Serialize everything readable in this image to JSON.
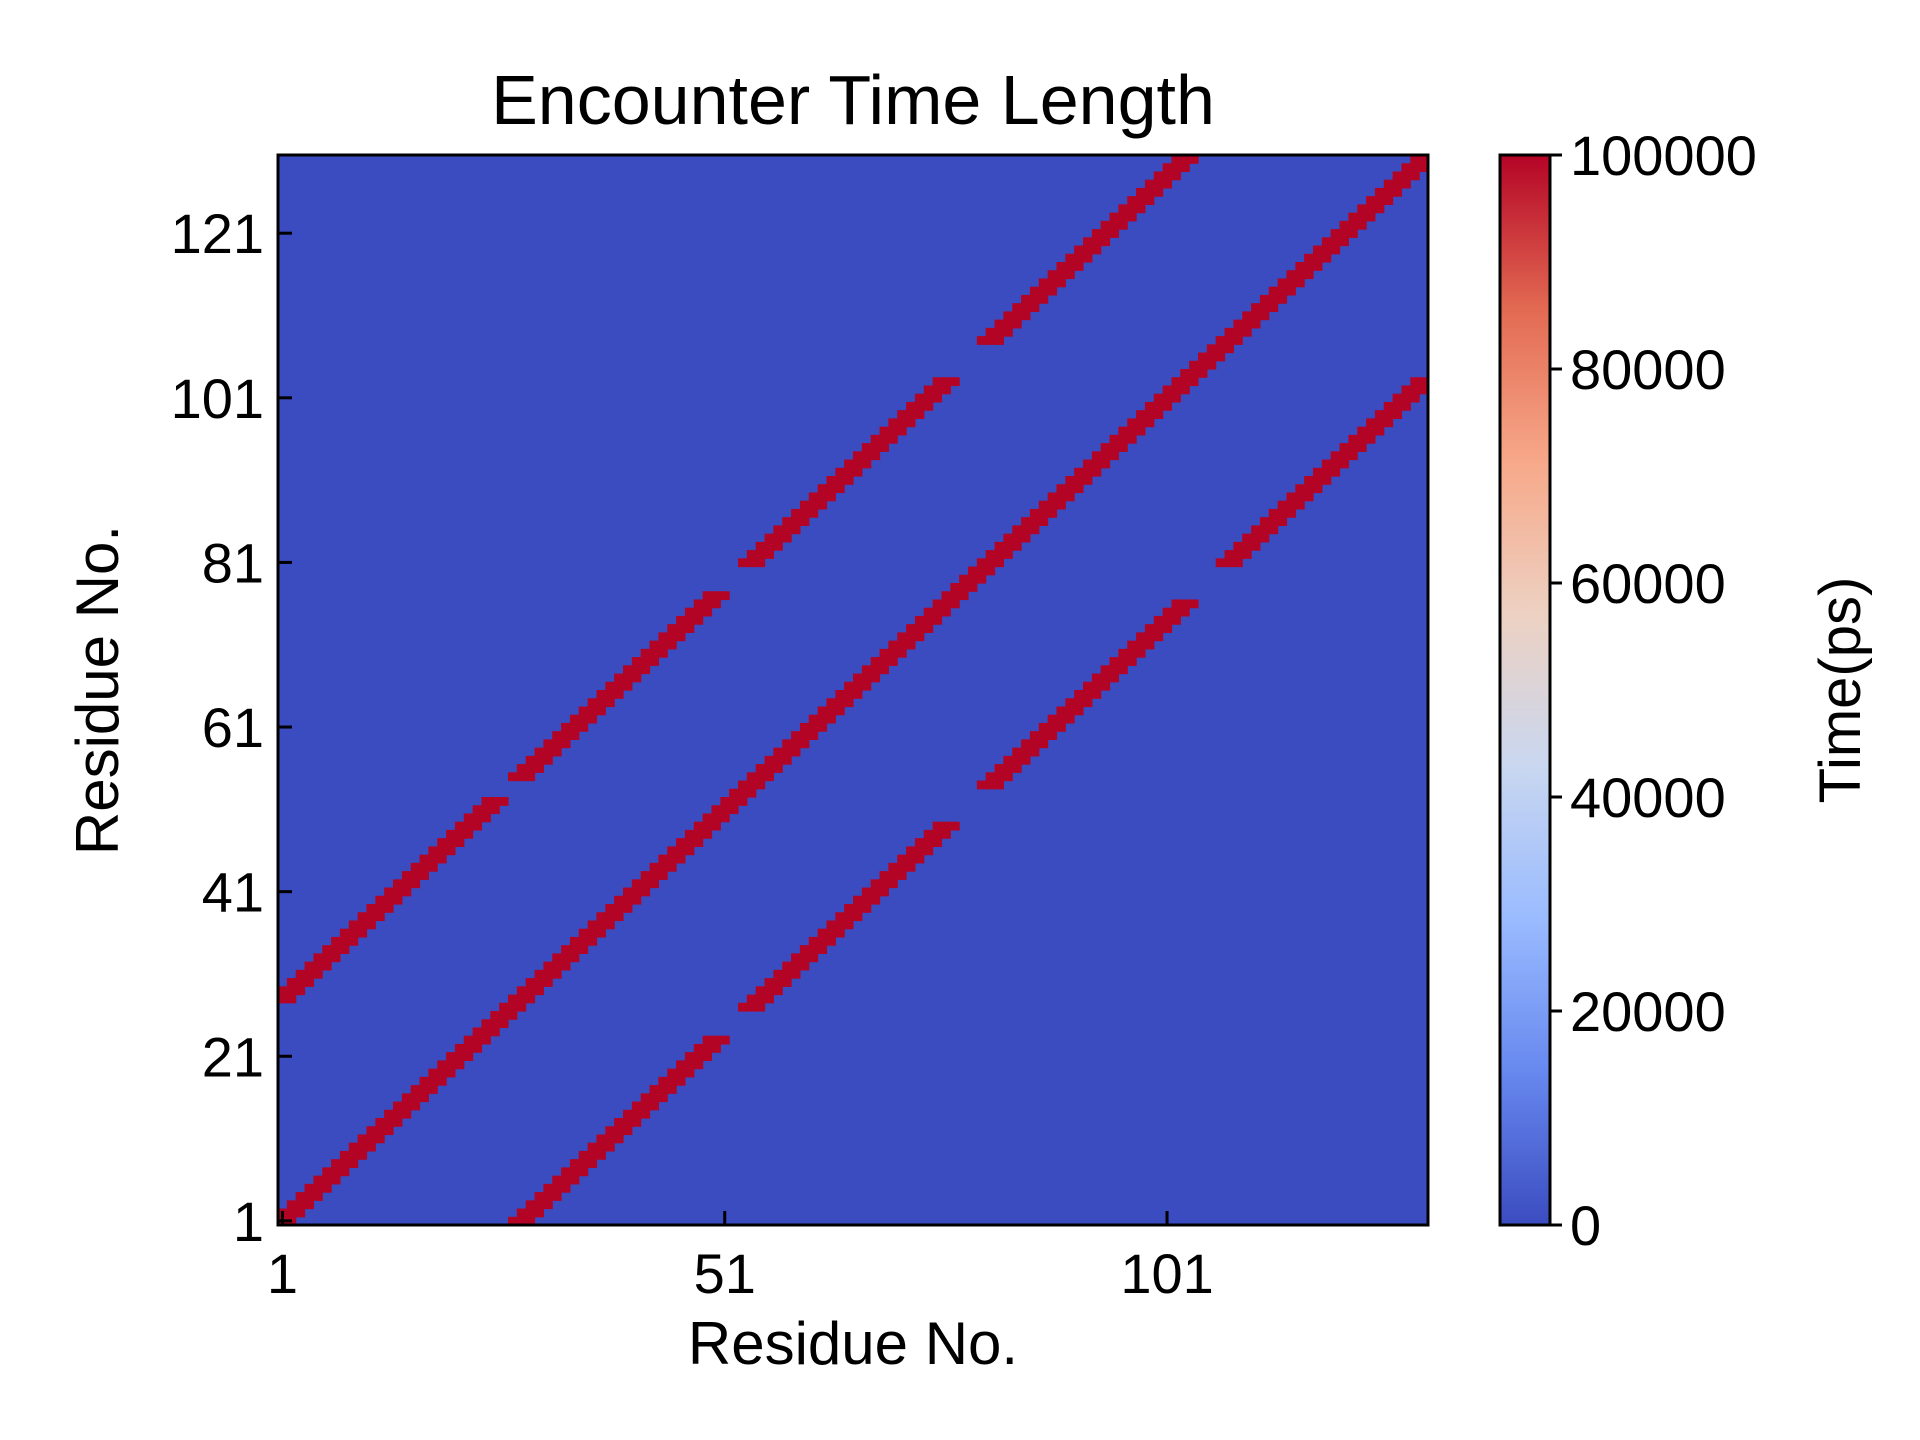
{
  "chart_data": {
    "type": "heatmap",
    "title": "Encounter Time Length",
    "xlabel": "Residue No.",
    "ylabel": "Residue No.",
    "x_range": [
      1,
      130
    ],
    "y_range": [
      1,
      130
    ],
    "x_ticks": [
      "1",
      "51",
      "101"
    ],
    "x_tick_values": [
      1,
      51,
      101
    ],
    "y_ticks": [
      "1",
      "21",
      "41",
      "61",
      "81",
      "101",
      "121"
    ],
    "y_tick_values": [
      1,
      21,
      41,
      61,
      81,
      101,
      121
    ],
    "colorbar": {
      "label": "Time(ps)",
      "range": [
        0,
        100000
      ],
      "ticks": [
        "0",
        "20000",
        "40000",
        "60000",
        "80000",
        "100000"
      ],
      "tick_values": [
        0,
        20000,
        40000,
        60000,
        80000,
        100000
      ],
      "colormap": "coolwarm",
      "colors": [
        "#3b4cc0",
        "#6788ee",
        "#9abbff",
        "#c9d7f0",
        "#edd1c2",
        "#f7a889",
        "#e26952",
        "#b40426"
      ]
    },
    "background_value": 0,
    "bands": [
      {
        "description": "main diagonal",
        "offset": 0,
        "start": 1,
        "end": 130,
        "value": 100000
      },
      {
        "description": "off-diagonal upper",
        "offset": 27,
        "start": 1,
        "end": 25,
        "value": 95000
      },
      {
        "description": "off-diagonal upper",
        "offset": 27,
        "start": 28,
        "end": 50,
        "value": 95000
      },
      {
        "description": "off-diagonal upper",
        "offset": 27,
        "start": 54,
        "end": 76,
        "value": 95000
      },
      {
        "description": "off-diagonal upper",
        "offset": 27,
        "start": 81,
        "end": 103,
        "value": 95000
      },
      {
        "description": "off-diagonal lower",
        "offset": -27,
        "start": 28,
        "end": 50,
        "value": 95000
      },
      {
        "description": "off-diagonal lower",
        "offset": -27,
        "start": 54,
        "end": 76,
        "value": 95000
      },
      {
        "description": "off-diagonal lower",
        "offset": -27,
        "start": 81,
        "end": 103,
        "value": 95000
      },
      {
        "description": "off-diagonal lower",
        "offset": -27,
        "start": 108,
        "end": 130,
        "value": 95000
      }
    ]
  }
}
